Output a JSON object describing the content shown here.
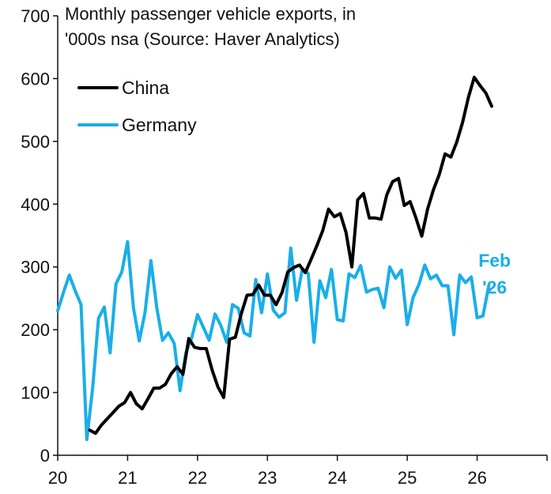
{
  "chart_data": {
    "type": "line",
    "title_lines": [
      "Monthly passenger vehicle exports, in",
      "'000s nsa (Source: Haver Analytics)"
    ],
    "xlabel": "",
    "ylabel": "",
    "x_ticks": [
      "20",
      "21",
      "22",
      "23",
      "24",
      "25",
      "26"
    ],
    "y_ticks": [
      "0",
      "100",
      "200",
      "300",
      "400",
      "500",
      "600",
      "700"
    ],
    "ylim": [
      0,
      700
    ],
    "xlim": [
      2020.0,
      2027.0
    ],
    "grid": false,
    "legend_position": "top-left",
    "annotation": {
      "lines": [
        "Feb",
        "'26"
      ],
      "color": "#1aaee8",
      "x": 2026.25,
      "y": 300
    },
    "series": [
      {
        "name": "China",
        "color": "#000000",
        "start": 2020.458,
        "values": [
          40,
          35,
          48,
          58,
          68,
          78,
          84,
          100,
          82,
          74,
          90,
          107,
          107,
          113,
          130,
          141,
          129,
          186,
          172,
          170,
          170,
          136,
          109,
          92,
          185,
          188,
          225,
          255,
          256,
          271,
          255,
          255,
          240,
          259,
          292,
          299,
          303,
          291,
          312,
          334,
          358,
          392,
          380,
          385,
          355,
          300,
          407,
          417,
          378,
          378,
          376,
          415,
          436,
          441,
          398,
          404,
          378,
          349,
          392,
          423,
          447,
          480,
          475,
          499,
          530,
          570,
          602,
          589,
          577,
          556
        ]
      },
      {
        "name": "Germany",
        "color": "#1aaee8",
        "start": 2020.0,
        "values": [
          230,
          260,
          287,
          262,
          240,
          25,
          107,
          218,
          236,
          163,
          273,
          292,
          340,
          235,
          182,
          228,
          310,
          235,
          183,
          195,
          178,
          103,
          163,
          187,
          224,
          204,
          183,
          225,
          207,
          180,
          240,
          234,
          195,
          190,
          280,
          227,
          289,
          231,
          220,
          227,
          330,
          247,
          297,
          290,
          180,
          278,
          251,
          296,
          216,
          214,
          289,
          283,
          302,
          260,
          264,
          266,
          235,
          300,
          282,
          295,
          208,
          251,
          272,
          303,
          281,
          287,
          270,
          270,
          192,
          287,
          275,
          284,
          219,
          222,
          270
        ]
      }
    ]
  }
}
